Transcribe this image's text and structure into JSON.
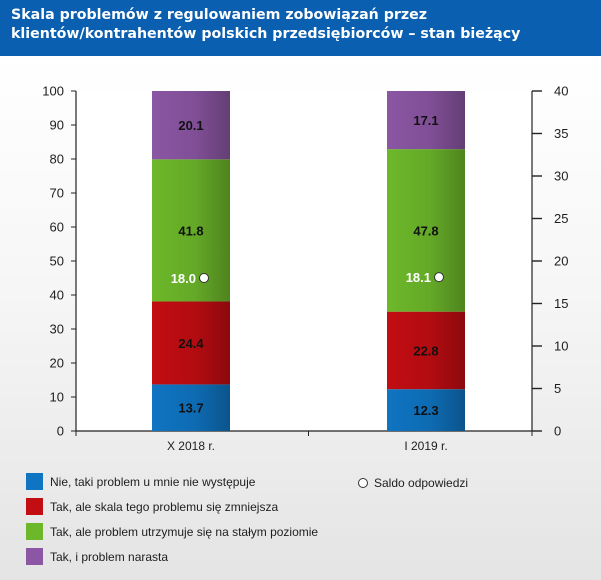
{
  "title": "Skala problemów z regulowaniem zobowiązań przez klientów/kontrahentów polskich przedsiębiorców – stan bieżący",
  "colors": {
    "nie": "#0f74c2",
    "zmniejsza": "#c20d12",
    "staly": "#6db82a",
    "narasta": "#8b56a3"
  },
  "chart_data": {
    "type": "bar",
    "stacked": true,
    "categories": [
      "X 2018 r.",
      "I 2019 r."
    ],
    "series": [
      {
        "name": "Nie, taki problem u mnie nie występuje",
        "color_key": "nie",
        "values": [
          13.7,
          12.3
        ]
      },
      {
        "name": "Tak, ale skala tego problemu się zmniejsza",
        "color_key": "zmniejsza",
        "values": [
          24.4,
          22.8
        ]
      },
      {
        "name": "Tak, ale problem utrzymuje się na stałym poziomie",
        "color_key": "staly",
        "values": [
          41.8,
          47.8
        ]
      },
      {
        "name": "Tak, i problem narasta",
        "color_key": "narasta",
        "values": [
          20.1,
          17.1
        ]
      }
    ],
    "secondary": {
      "name": "Saldo odpowiedzi",
      "marker": "circle",
      "values": [
        18.0,
        18.1
      ],
      "labels": [
        "18.0",
        "18.1"
      ]
    },
    "ylim": [
      0,
      100
    ],
    "yticks": [
      "0",
      "10",
      "20",
      "30",
      "40",
      "50",
      "60",
      "70",
      "80",
      "90",
      "100"
    ],
    "y2lim": [
      0,
      40
    ],
    "y2ticks": [
      "0",
      "5",
      "10",
      "15",
      "20",
      "25",
      "30",
      "35",
      "40"
    ],
    "grid": false,
    "legend_position": "bottom"
  }
}
